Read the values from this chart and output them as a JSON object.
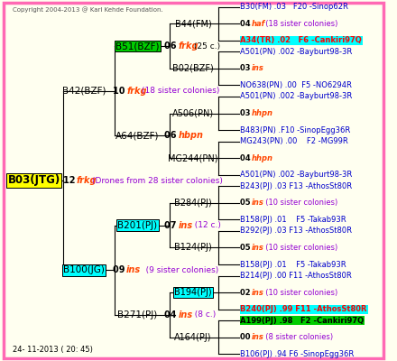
{
  "bg_color": "#FFFFF0",
  "border_color": "#FF69B4",
  "title_text": "24- 11-2013 ( 20: 45)",
  "copyright_text": "Copyright 2004-2013 @ Karl Kehde Foundation.",
  "tree": {
    "B03(JTG)": {
      "col": 0,
      "row": 8.0,
      "bg": "#FFFF00",
      "fg": "#000000"
    },
    "B42(BZF)": {
      "col": 1,
      "row": 4.0,
      "bg": null,
      "fg": "#000000"
    },
    "B100(JG)": {
      "col": 1,
      "row": 12.0,
      "bg": "#00FFFF",
      "fg": "#000000"
    },
    "B51(BZF)": {
      "col": 2,
      "row": 2.0,
      "bg": "#00CC00",
      "fg": "#000000"
    },
    "A64(BZF)": {
      "col": 2,
      "row": 6.0,
      "bg": null,
      "fg": "#000000"
    },
    "B201(PJ)": {
      "col": 2,
      "row": 10.0,
      "bg": "#00FFFF",
      "fg": "#000000"
    },
    "B271(PJ)": {
      "col": 2,
      "row": 14.0,
      "bg": null,
      "fg": "#000000"
    },
    "B44(FM)": {
      "col": 3,
      "row": 1.0,
      "bg": null,
      "fg": "#000000"
    },
    "B02(BZF)": {
      "col": 3,
      "row": 3.0,
      "bg": null,
      "fg": "#000000"
    },
    "A506(PN)": {
      "col": 3,
      "row": 5.0,
      "bg": null,
      "fg": "#000000"
    },
    "MG244(PN)": {
      "col": 3,
      "row": 7.0,
      "bg": null,
      "fg": "#000000"
    },
    "B284(PJ)": {
      "col": 3,
      "row": 9.0,
      "bg": null,
      "fg": "#000000"
    },
    "B124(PJ)": {
      "col": 3,
      "row": 11.0,
      "bg": null,
      "fg": "#000000"
    },
    "B194(PJ)": {
      "col": 3,
      "row": 13.0,
      "bg": "#00FFFF",
      "fg": "#000000"
    },
    "A164(PJ)": {
      "col": 3,
      "row": 15.0,
      "bg": null,
      "fg": "#000000"
    }
  },
  "connections": [
    [
      "B03(JTG)",
      "B42(BZF)"
    ],
    [
      "B03(JTG)",
      "B100(JG)"
    ],
    [
      "B42(BZF)",
      "B51(BZF)"
    ],
    [
      "B42(BZF)",
      "A64(BZF)"
    ],
    [
      "B100(JG)",
      "B201(PJ)"
    ],
    [
      "B100(JG)",
      "B271(PJ)"
    ],
    [
      "B51(BZF)",
      "B44(FM)"
    ],
    [
      "B51(BZF)",
      "B02(BZF)"
    ],
    [
      "A64(BZF)",
      "A506(PN)"
    ],
    [
      "A64(BZF)",
      "MG244(PN)"
    ],
    [
      "B201(PJ)",
      "B284(PJ)"
    ],
    [
      "B201(PJ)",
      "B124(PJ)"
    ],
    [
      "B271(PJ)",
      "B194(PJ)"
    ],
    [
      "B271(PJ)",
      "A164(PJ)"
    ]
  ],
  "mid_labels": [
    {
      "parent": "B03(JTG)",
      "text_num": "12",
      "text_italic": "frkg",
      "text_rest": "(Drones from 28 sister colonies)",
      "italic_color": "#FF4500",
      "rest_color": "#9400D3"
    },
    {
      "parent": "B42(BZF)",
      "text_num": "10",
      "text_italic": "frkg",
      "text_rest": "(18 sister colonies)",
      "italic_color": "#FF4500",
      "rest_color": "#9400D3"
    },
    {
      "parent": "B51(BZF)",
      "text_num": "06",
      "text_italic": "frkg",
      "text_rest": "(25 c.)",
      "italic_color": "#FF4500",
      "rest_color": "#000000"
    },
    {
      "parent": "A64(BZF)",
      "text_num": "06",
      "text_italic": "hbpn",
      "text_rest": "",
      "italic_color": "#FF4500",
      "rest_color": "#000000"
    },
    {
      "parent": "B100(JG)",
      "text_num": "09",
      "text_italic": "ins",
      "text_rest": "   (9 sister colonies)",
      "italic_color": "#FF4500",
      "rest_color": "#9400D3"
    },
    {
      "parent": "B201(PJ)",
      "text_num": "07",
      "text_italic": "ins",
      "text_rest": "  (12 c.)",
      "italic_color": "#FF4500",
      "rest_color": "#9400D3"
    },
    {
      "parent": "B271(PJ)",
      "text_num": "04",
      "text_italic": "ins",
      "text_rest": "  (8 c.)",
      "italic_color": "#FF4500",
      "rest_color": "#9400D3"
    }
  ],
  "gen4_groups": [
    {
      "parent": "B44(FM)",
      "lines": [
        {
          "text": "B30(FM) .03   F20 -Sinop62R",
          "color": "#0000CC",
          "bold": false,
          "bg": null
        },
        {
          "text": "04 haf  (18 sister colonies)",
          "color": "#000000",
          "bold": true,
          "bg": null,
          "mixed": true,
          "num": "04",
          "italic": "haf",
          "rest": "(18 sister colonies)"
        },
        {
          "text": "A34(TR) .02   F6 -Cankiri97Q",
          "color": "#FF0000",
          "bold": true,
          "bg": "#00FFFF"
        }
      ]
    },
    {
      "parent": "B02(BZF)",
      "lines": [
        {
          "text": "A501(PN) .002 -Bayburt98-3R",
          "color": "#0000CC",
          "bold": false,
          "bg": null
        },
        {
          "text": "03 ins",
          "color": "#000000",
          "bold": true,
          "bg": null,
          "mixed": true,
          "num": "03",
          "italic": "ins",
          "rest": ""
        },
        {
          "text": "NO638(PN) .00  F5 -NO6294R",
          "color": "#0000CC",
          "bold": false,
          "bg": null
        }
      ]
    },
    {
      "parent": "A506(PN)",
      "lines": [
        {
          "text": "A501(PN) .002 -Bayburt98-3R",
          "color": "#0000CC",
          "bold": false,
          "bg": null
        },
        {
          "text": "03 hhpn",
          "color": "#000000",
          "bold": true,
          "bg": null,
          "mixed": true,
          "num": "03",
          "italic": "hhpn",
          "rest": ""
        },
        {
          "text": "B483(PN) .F10 -SinopEgg36R",
          "color": "#0000CC",
          "bold": false,
          "bg": null
        }
      ]
    },
    {
      "parent": "MG244(PN)",
      "lines": [
        {
          "text": "MG243(PN) .00    F2 -MG99R",
          "color": "#0000CC",
          "bold": false,
          "bg": null
        },
        {
          "text": "04 hhpn",
          "color": "#000000",
          "bold": true,
          "bg": null,
          "mixed": true,
          "num": "04",
          "italic": "hhpn",
          "rest": ""
        },
        {
          "text": "A501(PN) .002 -Bayburt98-3R",
          "color": "#0000CC",
          "bold": false,
          "bg": null
        }
      ]
    },
    {
      "parent": "B284(PJ)",
      "lines": [
        {
          "text": "B243(PJ) .03 F13 -AthosSt80R",
          "color": "#0000CC",
          "bold": false,
          "bg": null
        },
        {
          "text": "05 ins  (10 sister colonies)",
          "color": "#000000",
          "bold": true,
          "bg": null,
          "mixed": true,
          "num": "05",
          "italic": "ins",
          "rest": "(10 sister colonies)"
        },
        {
          "text": "B158(PJ) .01    F5 -Takab93R",
          "color": "#0000CC",
          "bold": false,
          "bg": null
        }
      ]
    },
    {
      "parent": "B124(PJ)",
      "lines": [
        {
          "text": "B292(PJ) .03 F13 -AthosSt80R",
          "color": "#0000CC",
          "bold": false,
          "bg": null
        },
        {
          "text": "05 ins  (10 sister colonies)",
          "color": "#000000",
          "bold": true,
          "bg": null,
          "mixed": true,
          "num": "05",
          "italic": "ins",
          "rest": "(10 sister colonies)"
        },
        {
          "text": "B158(PJ) .01    F5 -Takab93R",
          "color": "#0000CC",
          "bold": false,
          "bg": null
        }
      ]
    },
    {
      "parent": "B194(PJ)",
      "lines": [
        {
          "text": "B214(PJ) .00 F11 -AthosSt80R",
          "color": "#0000CC",
          "bold": false,
          "bg": null
        },
        {
          "text": "02 ins  (10 sister colonies)",
          "color": "#000000",
          "bold": true,
          "bg": null,
          "mixed": true,
          "num": "02",
          "italic": "ins",
          "rest": "(10 sister colonies)"
        },
        {
          "text": "B240(PJ) .99 F11 -AthosSt80R",
          "color": "#FF0000",
          "bold": true,
          "bg": "#00FFFF"
        }
      ]
    },
    {
      "parent": "A164(PJ)",
      "lines": [
        {
          "text": "A199(PJ) .98   F2 -Cankiri97Q",
          "color": "#000000",
          "bold": true,
          "bg": "#00CC00"
        },
        {
          "text": "00 ins  (8 sister colonies)",
          "color": "#000000",
          "bold": true,
          "bg": null,
          "mixed": true,
          "num": "00",
          "italic": "ins",
          "rest": "(8 sister colonies)"
        },
        {
          "text": "B106(PJ) .94 F6 -SinopEgg36R",
          "color": "#0000CC",
          "bold": false,
          "bg": null
        }
      ]
    }
  ]
}
